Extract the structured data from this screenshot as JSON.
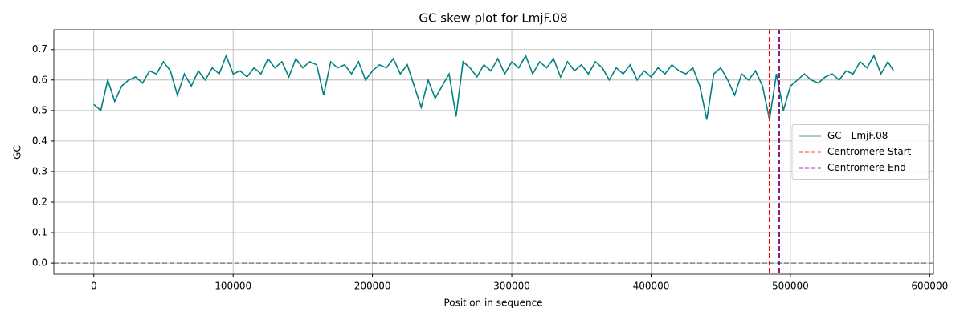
{
  "chart_data": {
    "type": "line",
    "title": "GC skew plot for LmjF.08",
    "xlabel": "Position in sequence",
    "ylabel": "GC",
    "x": [
      0,
      5000,
      10000,
      15000,
      20000,
      25000,
      30000,
      35000,
      40000,
      45000,
      50000,
      55000,
      60000,
      65000,
      70000,
      75000,
      80000,
      85000,
      90000,
      95000,
      100000,
      105000,
      110000,
      115000,
      120000,
      125000,
      130000,
      135000,
      140000,
      145000,
      150000,
      155000,
      160000,
      165000,
      170000,
      175000,
      180000,
      185000,
      190000,
      195000,
      200000,
      205000,
      210000,
      215000,
      220000,
      225000,
      230000,
      235000,
      240000,
      245000,
      250000,
      255000,
      260000,
      265000,
      270000,
      275000,
      280000,
      285000,
      290000,
      295000,
      300000,
      305000,
      310000,
      315000,
      320000,
      325000,
      330000,
      335000,
      340000,
      345000,
      350000,
      355000,
      360000,
      365000,
      370000,
      375000,
      380000,
      385000,
      390000,
      395000,
      400000,
      405000,
      410000,
      415000,
      420000,
      425000,
      430000,
      435000,
      440000,
      445000,
      450000,
      455000,
      460000,
      465000,
      470000,
      475000,
      480000,
      485000,
      490000,
      495000,
      500000,
      505000,
      510000,
      515000,
      520000,
      525000,
      530000,
      535000,
      540000,
      545000,
      550000,
      555000,
      560000,
      565000,
      570000,
      574000
    ],
    "series": [
      {
        "name": "GC - LmjF.08",
        "color": "#008080",
        "values": [
          0.52,
          0.5,
          0.6,
          0.53,
          0.58,
          0.6,
          0.61,
          0.59,
          0.63,
          0.62,
          0.66,
          0.63,
          0.55,
          0.62,
          0.58,
          0.63,
          0.6,
          0.64,
          0.62,
          0.68,
          0.62,
          0.63,
          0.61,
          0.64,
          0.62,
          0.67,
          0.64,
          0.66,
          0.61,
          0.67,
          0.64,
          0.66,
          0.65,
          0.55,
          0.66,
          0.64,
          0.65,
          0.62,
          0.66,
          0.6,
          0.63,
          0.65,
          0.64,
          0.67,
          0.62,
          0.65,
          0.58,
          0.51,
          0.6,
          0.54,
          0.58,
          0.62,
          0.48,
          0.66,
          0.64,
          0.61,
          0.65,
          0.63,
          0.67,
          0.62,
          0.66,
          0.64,
          0.68,
          0.62,
          0.66,
          0.64,
          0.67,
          0.61,
          0.66,
          0.63,
          0.65,
          0.62,
          0.66,
          0.64,
          0.6,
          0.64,
          0.62,
          0.65,
          0.6,
          0.63,
          0.61,
          0.64,
          0.62,
          0.65,
          0.63,
          0.62,
          0.64,
          0.58,
          0.47,
          0.62,
          0.64,
          0.6,
          0.55,
          0.62,
          0.6,
          0.63,
          0.58,
          0.47,
          0.62,
          0.5,
          0.58,
          0.6,
          0.62,
          0.6,
          0.59,
          0.61,
          0.62,
          0.6,
          0.63,
          0.62,
          0.66,
          0.64,
          0.68,
          0.62,
          0.66,
          0.63
        ]
      }
    ],
    "vlines": [
      {
        "name": "Centromere Start",
        "color": "red",
        "x": 485000
      },
      {
        "name": "Centromere End",
        "color": "purple",
        "x": 492000
      }
    ],
    "hline": {
      "y": 0,
      "color": "gray"
    },
    "xlim": [
      -28700,
      602700
    ],
    "ylim": [
      -0.0365,
      0.765
    ],
    "xticks": [
      0,
      100000,
      200000,
      300000,
      400000,
      500000,
      600000
    ],
    "yticks": [
      {
        "value": 0,
        "label": "0.0"
      },
      0.1,
      0.2,
      0.3,
      0.4,
      0.5,
      0.6,
      0.7
    ],
    "grid": true,
    "legend": "center right"
  }
}
